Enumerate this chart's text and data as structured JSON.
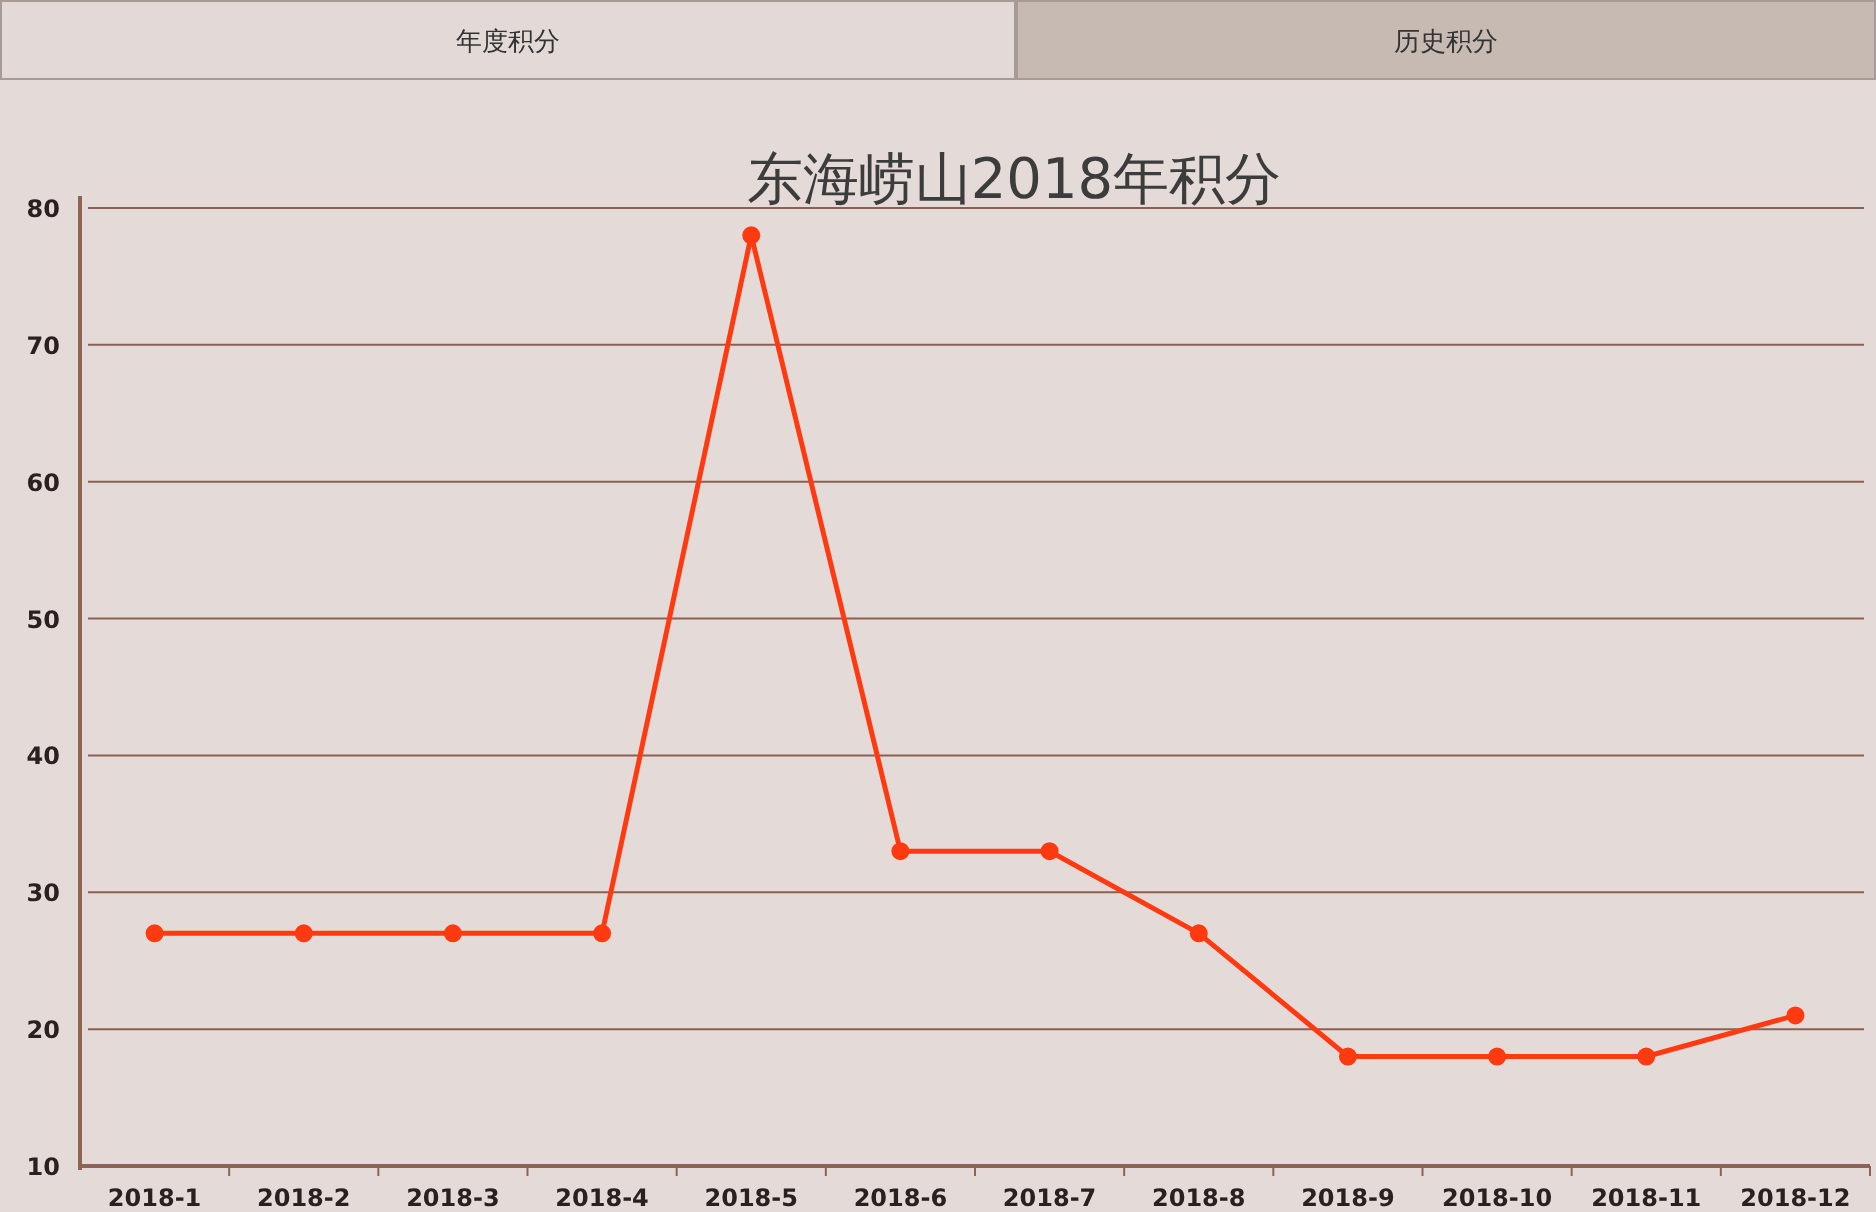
{
  "chart_data": {
    "type": "line",
    "title": "东海崂山2018年积分",
    "annotations": [
      "年度积分",
      "历史积分"
    ],
    "categories": [
      "2018-1",
      "2018-2",
      "2018-3",
      "2018-4",
      "2018-5",
      "2018-6",
      "2018-7",
      "2018-8",
      "2018-9",
      "2018-10",
      "2018-11",
      "2018-12"
    ],
    "series": [
      {
        "color": "#ff3a10",
        "values": [
          27,
          27,
          27,
          27,
          78,
          33,
          33,
          27,
          18,
          18,
          18,
          21
        ]
      }
    ],
    "ylim": [
      10,
      80
    ],
    "yticks": [
      10,
      20,
      30,
      40,
      50,
      60,
      70,
      80
    ],
    "grid": "y",
    "marker": "circle",
    "line_style": "solid"
  }
}
